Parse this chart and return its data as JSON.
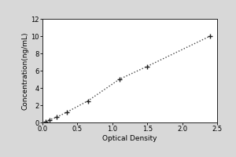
{
  "x_data": [
    0.05,
    0.1,
    0.2,
    0.35,
    0.65,
    1.1,
    1.5,
    2.4
  ],
  "y_data": [
    0.1,
    0.3,
    0.6,
    1.2,
    2.5,
    5.0,
    6.5,
    10.0
  ],
  "xlabel": "Optical Density",
  "ylabel": "Concentration(ng/mL)",
  "xlim": [
    0,
    2.5
  ],
  "ylim": [
    0,
    12
  ],
  "xticks": [
    0,
    0.5,
    1.0,
    1.5,
    2.0,
    2.5
  ],
  "yticks": [
    0,
    2,
    4,
    6,
    8,
    10,
    12
  ],
  "line_color": "#444444",
  "marker_color": "#222222",
  "background_color": "#d8d8d8",
  "plot_facecolor": "#ffffff",
  "label_fontsize": 6.5,
  "tick_fontsize": 6,
  "figure_width": 3.0,
  "figure_height": 2.0,
  "dpi": 100
}
